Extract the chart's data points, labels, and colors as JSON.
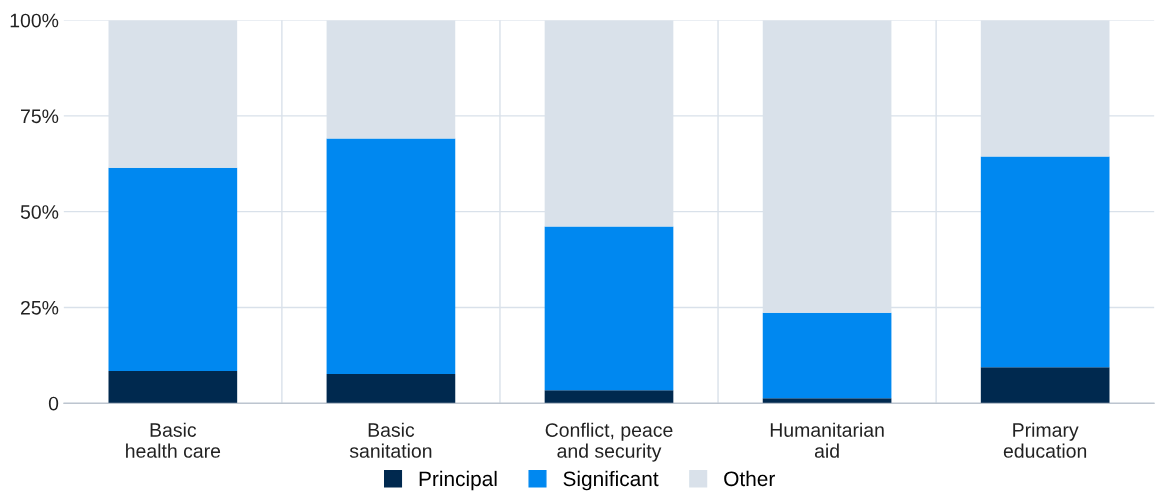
{
  "chart_data": {
    "type": "bar",
    "stacked": true,
    "categories": [
      "Basic\nhealth care",
      "Basic\nsanitation",
      "Conflict, peace\nand security",
      "Humanitarian\naid",
      "Primary\neducation"
    ],
    "series": [
      {
        "name": "Principal",
        "color": "#00294f",
        "values": [
          8.4,
          7.6,
          3.4,
          1.3,
          9.4
        ]
      },
      {
        "name": "Significant",
        "color": "#0088f0",
        "values": [
          53.1,
          61.5,
          42.7,
          22.3,
          55.0
        ]
      },
      {
        "name": "Other",
        "color": "#d9e1ea",
        "values": [
          38.5,
          30.9,
          53.9,
          76.4,
          35.6
        ]
      }
    ],
    "ylim": [
      0,
      100
    ],
    "yticks": [
      {
        "value": 0,
        "label": "0"
      },
      {
        "value": 25,
        "label": "25%"
      },
      {
        "value": 50,
        "label": "50%"
      },
      {
        "value": 75,
        "label": "75%"
      },
      {
        "value": 100,
        "label": "100%"
      }
    ],
    "grid": true,
    "legend": "bottom"
  }
}
